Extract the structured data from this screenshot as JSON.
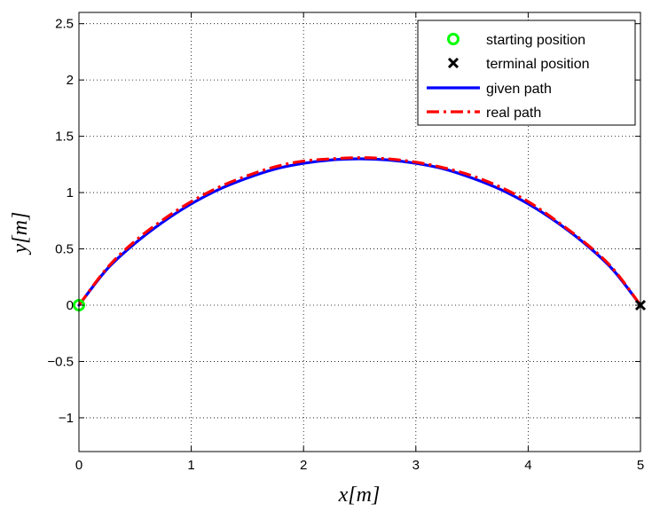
{
  "chart_data": {
    "type": "line",
    "xlabel": "x[m]",
    "ylabel": "y[m]",
    "xlim": [
      0,
      5
    ],
    "ylim": [
      -1.3,
      2.6
    ],
    "xticks": [
      0,
      1,
      2,
      3,
      4,
      5
    ],
    "xtick_labels": [
      "0",
      "1",
      "2",
      "3",
      "4",
      "5"
    ],
    "yticks": [
      -1,
      -0.5,
      0,
      0.5,
      1,
      1.5,
      2,
      2.5
    ],
    "ytick_labels": [
      "−1",
      "−0.5",
      "0",
      "0.5",
      "1",
      "1.5",
      "2",
      "2.5"
    ],
    "grid": true,
    "legend_position": "top-right",
    "colors": {
      "given_path": "#0000ff",
      "real_path": "#ff0000",
      "start_marker": "#00ff00",
      "terminal_marker": "#000000"
    },
    "series": [
      {
        "name": "given path",
        "style": "solid",
        "x": [
          0,
          0.25,
          0.5,
          0.75,
          1.0,
          1.25,
          1.5,
          1.75,
          2.0,
          2.25,
          2.5,
          2.75,
          3.0,
          3.25,
          3.5,
          3.75,
          4.0,
          4.25,
          4.5,
          4.75,
          5.0
        ],
        "y": [
          0,
          0.32,
          0.55,
          0.74,
          0.9,
          1.03,
          1.13,
          1.21,
          1.26,
          1.29,
          1.3,
          1.29,
          1.26,
          1.21,
          1.13,
          1.03,
          0.9,
          0.74,
          0.55,
          0.32,
          0
        ]
      },
      {
        "name": "real path",
        "style": "dash-dot",
        "x": [
          0,
          0.25,
          0.5,
          0.75,
          1.0,
          1.25,
          1.5,
          1.75,
          2.0,
          2.25,
          2.5,
          2.75,
          3.0,
          3.25,
          3.5,
          3.75,
          4.0,
          4.25,
          4.5,
          4.75,
          5.0
        ],
        "y": [
          0,
          0.33,
          0.57,
          0.76,
          0.92,
          1.05,
          1.15,
          1.23,
          1.28,
          1.3,
          1.31,
          1.3,
          1.27,
          1.22,
          1.15,
          1.05,
          0.92,
          0.75,
          0.56,
          0.33,
          0
        ]
      }
    ],
    "markers": [
      {
        "name": "starting position",
        "shape": "circle",
        "x": 0,
        "y": 0
      },
      {
        "name": "terminal position",
        "shape": "x",
        "x": 5,
        "y": 0
      }
    ],
    "legend": [
      "starting position",
      "terminal position",
      "given path",
      "real path"
    ]
  }
}
